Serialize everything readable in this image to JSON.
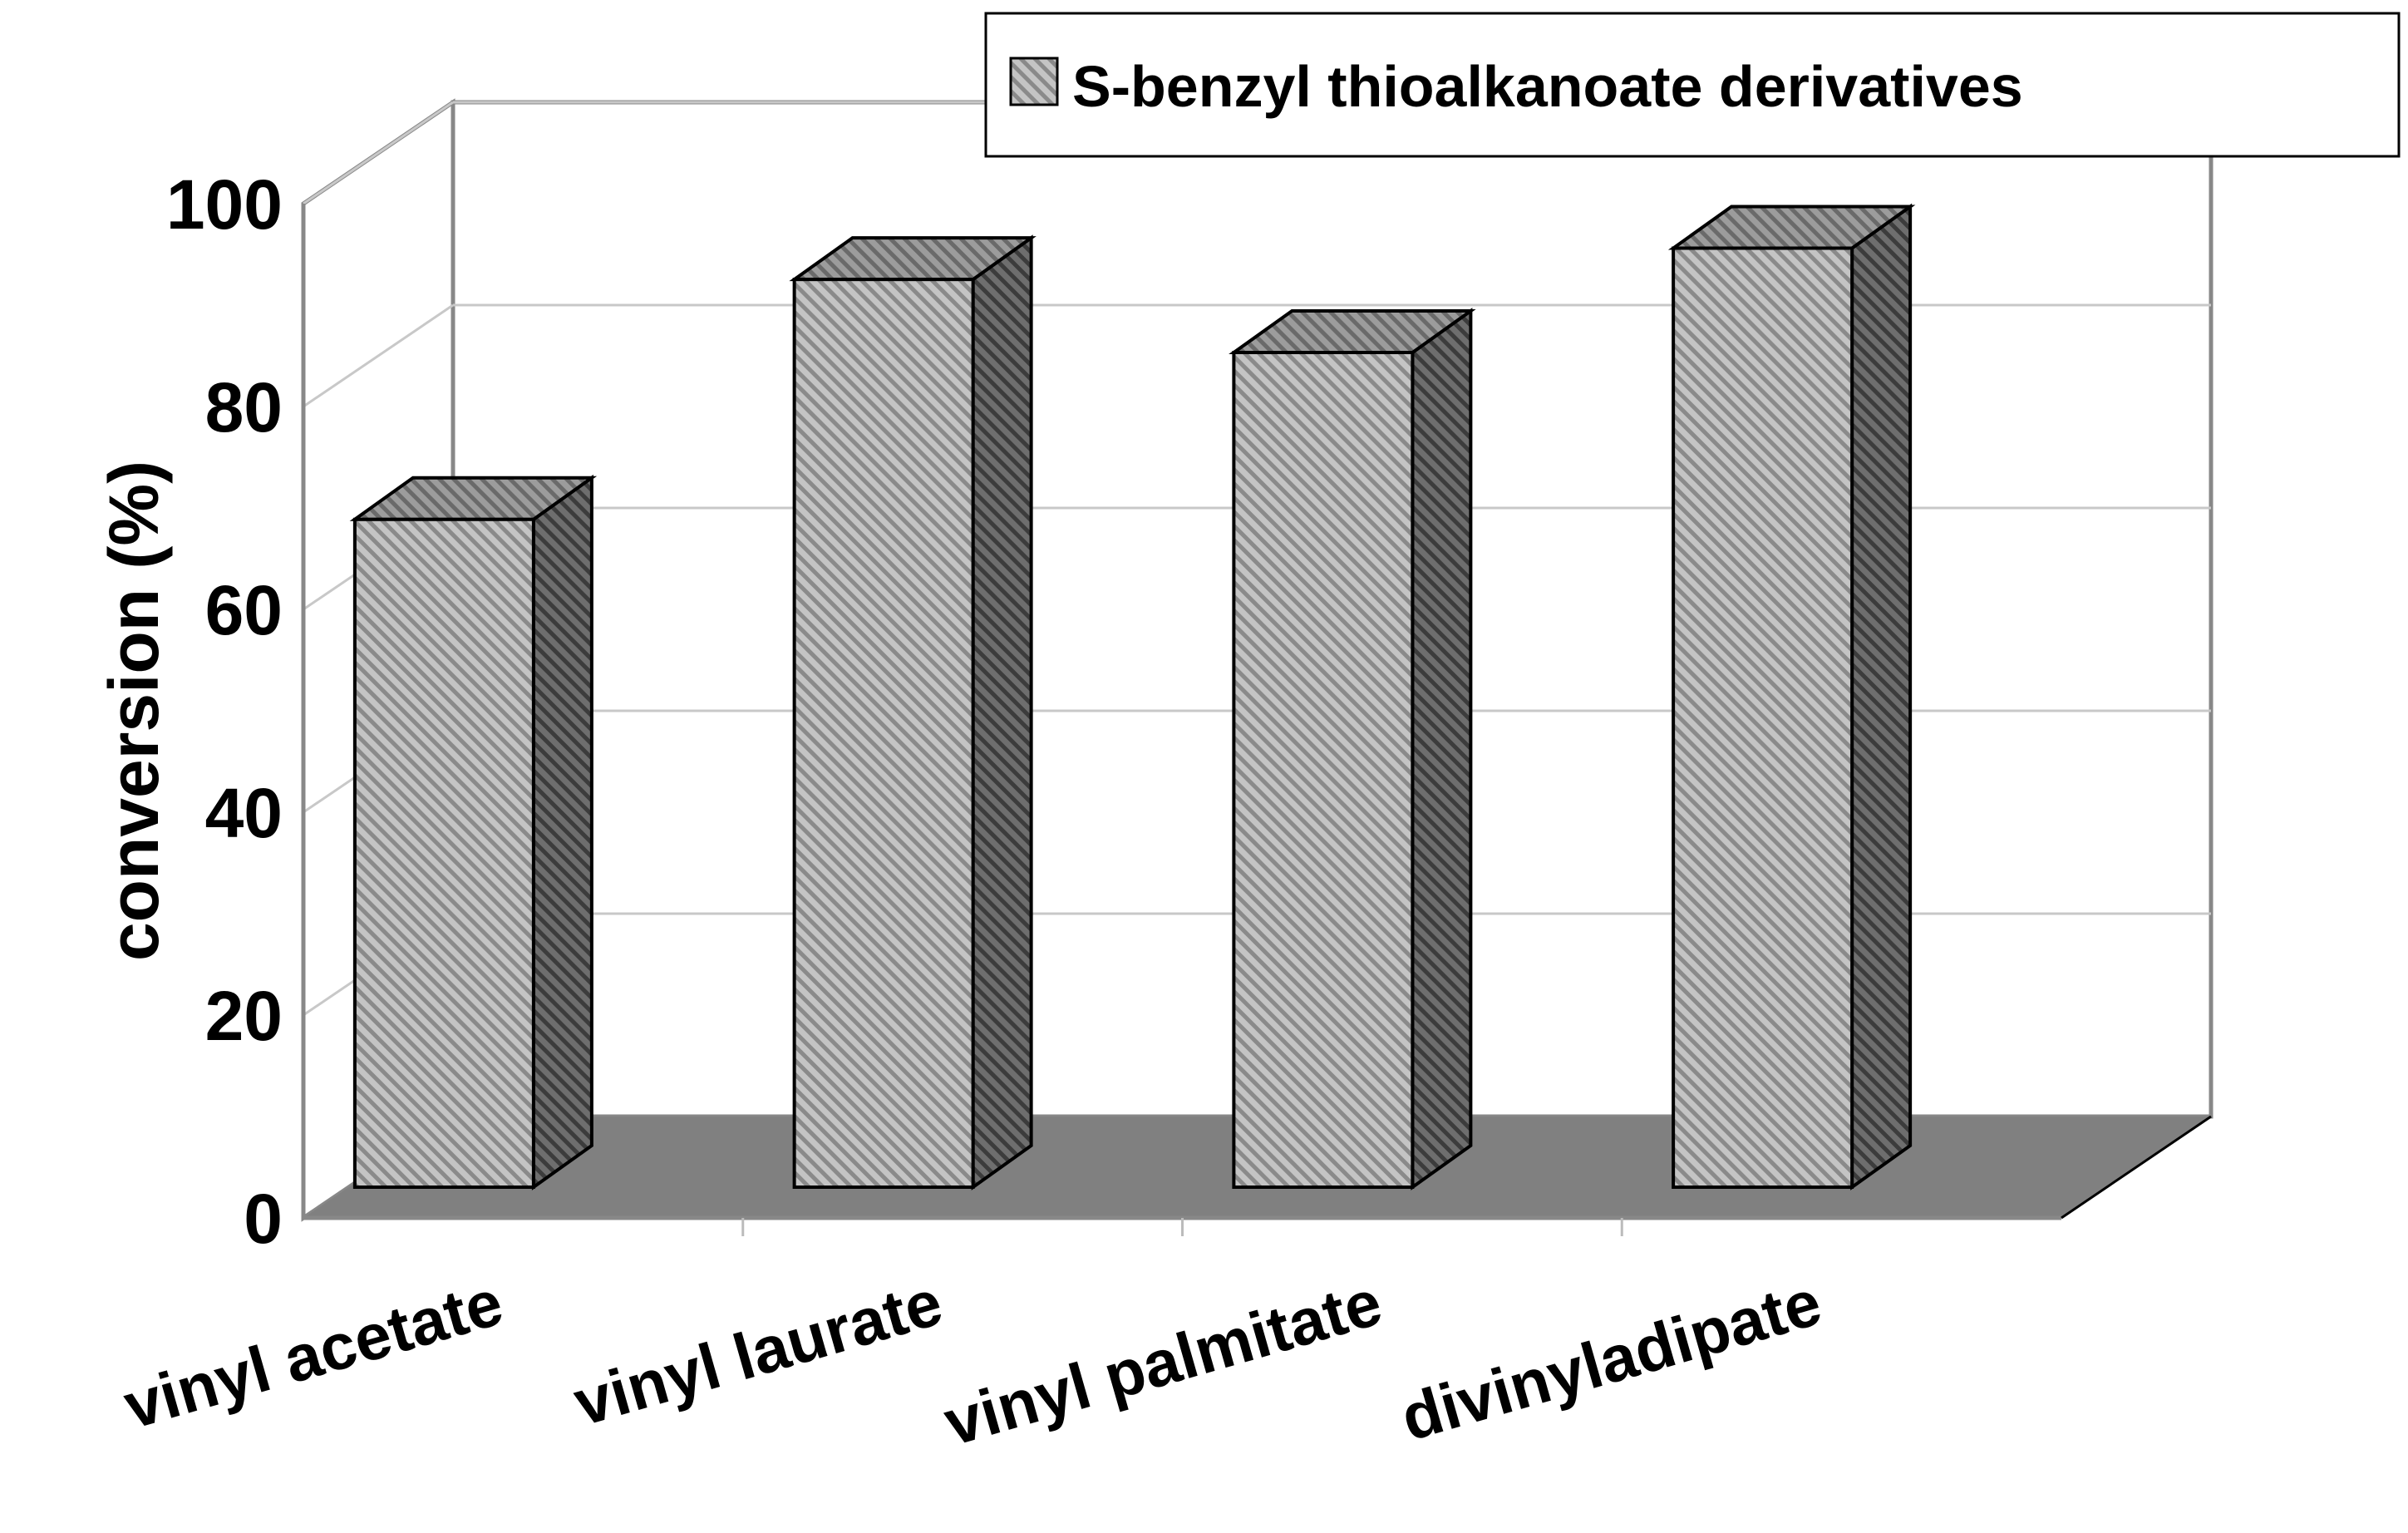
{
  "chart_data": {
    "type": "bar",
    "style": "3d-clustered-column",
    "categories": [
      "vinyl acetate",
      "vinyl laurate",
      "vinyl palmitate",
      "divinyladipate"
    ],
    "series": [
      {
        "name": "S-benzyl thioalkanoate derivatives",
        "values": [
          64,
          87,
          80,
          90
        ]
      }
    ],
    "title": "",
    "xlabel": "",
    "ylabel": "conversion (%)",
    "ylim": [
      0,
      100
    ],
    "yticks": [
      "0",
      "20",
      "40",
      "60",
      "80",
      "100"
    ],
    "grid": true,
    "legend_position": "top-right",
    "colors": {
      "bar_front": "#b8b8b8",
      "bar_side": "#5e5e5e",
      "bar_top": "#8c8c8c",
      "floor": "#808080",
      "grid": "#c8c8c8",
      "walls": "#888888"
    }
  }
}
